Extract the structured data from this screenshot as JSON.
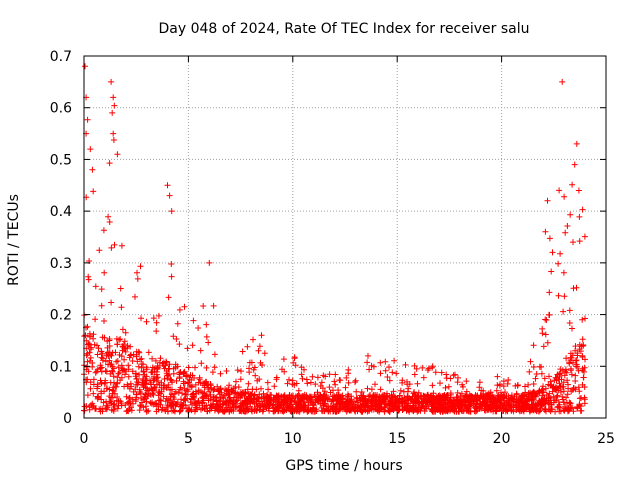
{
  "chart_data": {
    "type": "scatter",
    "title": "Day 048 of 2024, Rate Of TEC Index for receiver salu",
    "xlabel": "GPS time / hours",
    "ylabel": "ROTI / TECUs",
    "xlim": [
      0,
      25
    ],
    "ylim": [
      0,
      0.7
    ],
    "xticks": [
      0,
      5,
      10,
      15,
      20,
      25
    ],
    "yticks": [
      0,
      0.1,
      0.2,
      0.3,
      0.4,
      0.5,
      0.6,
      0.7
    ],
    "grid": true,
    "marker": "+",
    "color": "#ff0000",
    "series": [
      {
        "name": "ROTI",
        "envelope_x": [
          0,
          0.5,
          1,
          1.5,
          2,
          2.5,
          3,
          3.5,
          4,
          4.5,
          5,
          5.5,
          6,
          6.5,
          7,
          8,
          9,
          10,
          11,
          12,
          13,
          14,
          15,
          16,
          17,
          18,
          19,
          20,
          21,
          22,
          22.5,
          23,
          23.5,
          24
        ],
        "envelope_typical": [
          0.15,
          0.14,
          0.13,
          0.13,
          0.12,
          0.11,
          0.1,
          0.09,
          0.09,
          0.08,
          0.07,
          0.06,
          0.05,
          0.045,
          0.04,
          0.035,
          0.03,
          0.03,
          0.03,
          0.03,
          0.03,
          0.03,
          0.03,
          0.03,
          0.03,
          0.03,
          0.03,
          0.03,
          0.03,
          0.04,
          0.06,
          0.08,
          0.12,
          0.13
        ],
        "envelope_max": [
          0.69,
          0.48,
          0.44,
          0.65,
          0.4,
          0.3,
          0.31,
          0.25,
          0.45,
          0.28,
          0.2,
          0.2,
          0.3,
          0.1,
          0.11,
          0.16,
          0.11,
          0.13,
          0.1,
          0.09,
          0.1,
          0.12,
          0.11,
          0.1,
          0.1,
          0.08,
          0.07,
          0.08,
          0.06,
          0.22,
          0.43,
          0.65,
          0.53,
          0.4
        ],
        "notable_points": [
          {
            "x": 0.05,
            "y": 0.68
          },
          {
            "x": 0.1,
            "y": 0.62
          },
          {
            "x": 0.1,
            "y": 0.55
          },
          {
            "x": 0.3,
            "y": 0.52
          },
          {
            "x": 0.4,
            "y": 0.48
          },
          {
            "x": 1.3,
            "y": 0.65
          },
          {
            "x": 1.4,
            "y": 0.62
          },
          {
            "x": 1.35,
            "y": 0.59
          },
          {
            "x": 1.4,
            "y": 0.55
          },
          {
            "x": 1.6,
            "y": 0.51
          },
          {
            "x": 4.0,
            "y": 0.45
          },
          {
            "x": 4.1,
            "y": 0.43
          },
          {
            "x": 4.2,
            "y": 0.4
          },
          {
            "x": 6.0,
            "y": 0.3
          },
          {
            "x": 8.5,
            "y": 0.16
          },
          {
            "x": 13.6,
            "y": 0.12
          },
          {
            "x": 16.7,
            "y": 0.1
          },
          {
            "x": 19.8,
            "y": 0.08
          },
          {
            "x": 22.9,
            "y": 0.65
          },
          {
            "x": 23.6,
            "y": 0.53
          },
          {
            "x": 23.5,
            "y": 0.49
          },
          {
            "x": 23.7,
            "y": 0.44
          },
          {
            "x": 22.2,
            "y": 0.42
          },
          {
            "x": 22.1,
            "y": 0.36
          }
        ]
      }
    ]
  }
}
